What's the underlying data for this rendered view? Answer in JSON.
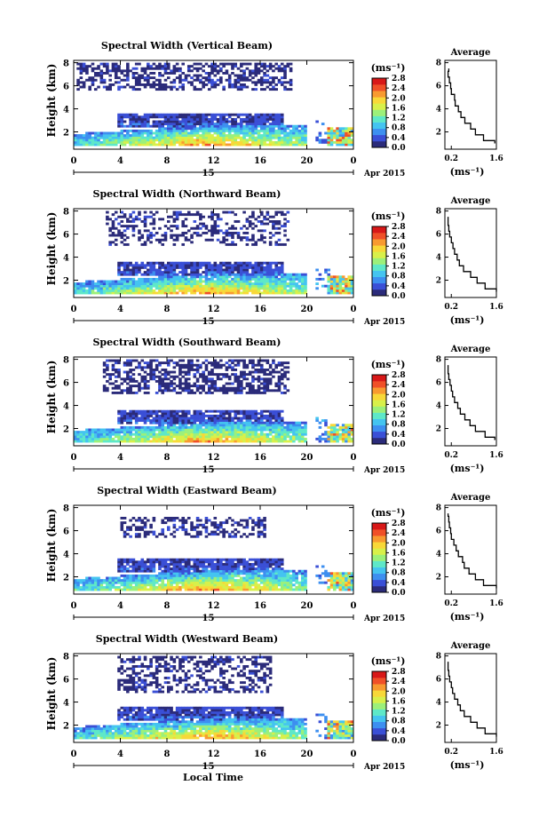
{
  "xlabel": "Local Time",
  "date_label": "Apr 2015",
  "day_label": "15",
  "x_ticks": [
    "0",
    "4",
    "8",
    "12",
    "16",
    "20",
    "0"
  ],
  "y_ticks": [
    "2",
    "4",
    "6",
    "8"
  ],
  "y_label": "Height (km)",
  "unit_label": "(ms⁻¹)",
  "avg_title": "Average",
  "avg_unit": "(ms⁻¹)",
  "avg_y_ticks": [
    "2",
    "4",
    "6",
    "8"
  ],
  "colorbar_ticks": [
    "0.0",
    "0.4",
    "0.8",
    "1.2",
    "1.6",
    "2.0",
    "2.4",
    "2.8"
  ],
  "colors": {
    "colormap": [
      "#2b2b7a",
      "#3a4fd6",
      "#3d8ff0",
      "#44c4f0",
      "#5ee8c8",
      "#9cf07a",
      "#d8f04a",
      "#f8d838",
      "#f89a30",
      "#f05028",
      "#d81818"
    ]
  },
  "chart_data": [
    {
      "type": "heatmap",
      "title": "Spectral Width (Vertical Beam)",
      "beam": "vertical",
      "x_range": [
        0,
        24
      ],
      "y_range": [
        0.5,
        8.2
      ],
      "colorbar_range": [
        0,
        2.8
      ],
      "avg_profile": {
        "x_ticks": [
          "0.2",
          "1.6"
        ],
        "xlim": [
          0,
          1.6
        ],
        "ylim": [
          0.5,
          8.2
        ],
        "height": [
          1.0,
          1.5,
          2.0,
          2.5,
          3.0,
          3.5,
          4.0,
          4.5,
          5.0,
          5.5,
          6.0,
          6.5,
          7.0,
          7.5
        ],
        "width": [
          1.55,
          1.2,
          0.95,
          0.8,
          0.62,
          0.5,
          0.42,
          0.32,
          0.3,
          0.2,
          0.18,
          0.14,
          0.1,
          0.12
        ]
      }
    },
    {
      "type": "heatmap",
      "title": "Spectral Width (Northward Beam)",
      "beam": "northward",
      "x_range": [
        0,
        24
      ],
      "y_range": [
        0.5,
        8.2
      ],
      "colorbar_range": [
        0,
        2.8
      ],
      "avg_profile": {
        "x_ticks": [
          "0.2",
          "1.6"
        ],
        "xlim": [
          0,
          1.6
        ],
        "ylim": [
          0.5,
          8.2
        ],
        "height": [
          1.0,
          1.5,
          2.0,
          2.5,
          3.0,
          3.5,
          4.0,
          4.5,
          5.0,
          5.5,
          6.0,
          6.5,
          7.0,
          7.5
        ],
        "width": [
          1.6,
          1.25,
          1.0,
          0.8,
          0.58,
          0.45,
          0.38,
          0.3,
          0.25,
          0.2,
          0.15,
          0.12,
          0.1,
          0.1
        ]
      }
    },
    {
      "type": "heatmap",
      "title": "Spectral Width (Southward Beam)",
      "beam": "southward",
      "x_range": [
        0,
        24
      ],
      "y_range": [
        0.5,
        8.2
      ],
      "colorbar_range": [
        0,
        2.8
      ],
      "avg_profile": {
        "x_ticks": [
          "0.2",
          "1.6"
        ],
        "xlim": [
          0,
          1.6
        ],
        "ylim": [
          0.5,
          8.2
        ],
        "height": [
          1.0,
          1.5,
          2.0,
          2.5,
          3.0,
          3.5,
          4.0,
          4.5,
          5.0,
          5.5,
          6.0,
          6.5,
          7.0,
          7.5
        ],
        "width": [
          1.55,
          1.25,
          0.95,
          0.78,
          0.62,
          0.48,
          0.4,
          0.3,
          0.24,
          0.2,
          0.16,
          0.12,
          0.1,
          0.1
        ]
      }
    },
    {
      "type": "heatmap",
      "title": "Spectral Width (Eastward Beam)",
      "beam": "eastward",
      "x_range": [
        0,
        24
      ],
      "y_range": [
        0.5,
        8.2
      ],
      "colorbar_range": [
        0,
        2.8
      ],
      "avg_profile": {
        "x_ticks": [
          "0.2",
          "1.6"
        ],
        "xlim": [
          0,
          1.6
        ],
        "ylim": [
          0.5,
          8.2
        ],
        "height": [
          1.0,
          1.5,
          2.0,
          2.5,
          3.0,
          3.5,
          4.0,
          4.5,
          5.0,
          5.5,
          6.0,
          6.5,
          7.0,
          7.5
        ],
        "width": [
          1.6,
          1.2,
          0.95,
          0.75,
          0.6,
          0.55,
          0.42,
          0.35,
          0.28,
          0.2,
          0.18,
          0.14,
          0.12,
          0.1
        ]
      }
    },
    {
      "type": "heatmap",
      "title": "Spectral Width (Westward Beam)",
      "beam": "westward",
      "x_range": [
        0,
        24
      ],
      "y_range": [
        0.5,
        8.2
      ],
      "colorbar_range": [
        0,
        2.8
      ],
      "avg_profile": {
        "x_ticks": [
          "0.2",
          "1.6"
        ],
        "xlim": [
          0,
          1.6
        ],
        "ylim": [
          0.5,
          8.2
        ],
        "height": [
          1.0,
          1.5,
          2.0,
          2.5,
          3.0,
          3.5,
          4.0,
          4.5,
          5.0,
          5.5,
          6.0,
          6.5,
          7.0,
          7.5
        ],
        "width": [
          1.6,
          1.25,
          1.0,
          0.8,
          0.6,
          0.48,
          0.4,
          0.3,
          0.24,
          0.2,
          0.15,
          0.12,
          0.1,
          0.1
        ]
      }
    }
  ]
}
